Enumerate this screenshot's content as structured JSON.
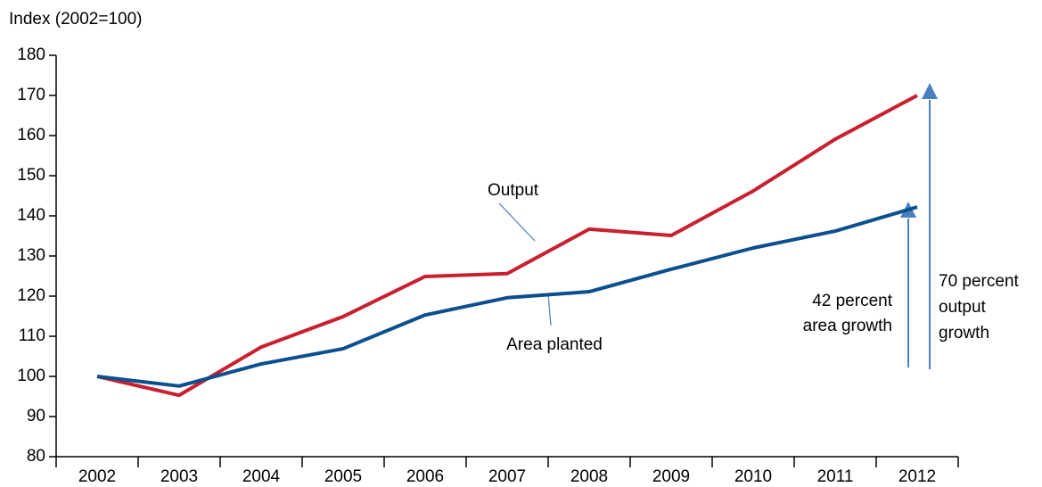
{
  "chart_data": {
    "type": "line",
    "y_label": "Index (2002=100)",
    "categories": [
      "2002",
      "2003",
      "2004",
      "2005",
      "2006",
      "2007",
      "2008",
      "2009",
      "2010",
      "2011",
      "2012"
    ],
    "series": [
      {
        "name": "Output",
        "color": "#c8202f",
        "values": [
          100,
          95.3,
          107.3,
          114.9,
          124.9,
          125.6,
          136.7,
          135.1,
          146.2,
          159.1,
          170
        ]
      },
      {
        "name": "Area planted",
        "color": "#0b4f8f",
        "values": [
          100,
          97.6,
          103.1,
          106.9,
          115.3,
          119.6,
          121.1,
          126.7,
          132,
          136.2,
          142.2
        ]
      }
    ],
    "ylim": [
      80,
      180
    ],
    "yticks": [
      80,
      90,
      100,
      110,
      120,
      130,
      140,
      150,
      160,
      170,
      180
    ],
    "annotations": [
      {
        "lines": [
          "42 percent",
          "area growth"
        ]
      },
      {
        "lines": [
          "70 percent",
          "output",
          "growth"
        ]
      }
    ]
  }
}
